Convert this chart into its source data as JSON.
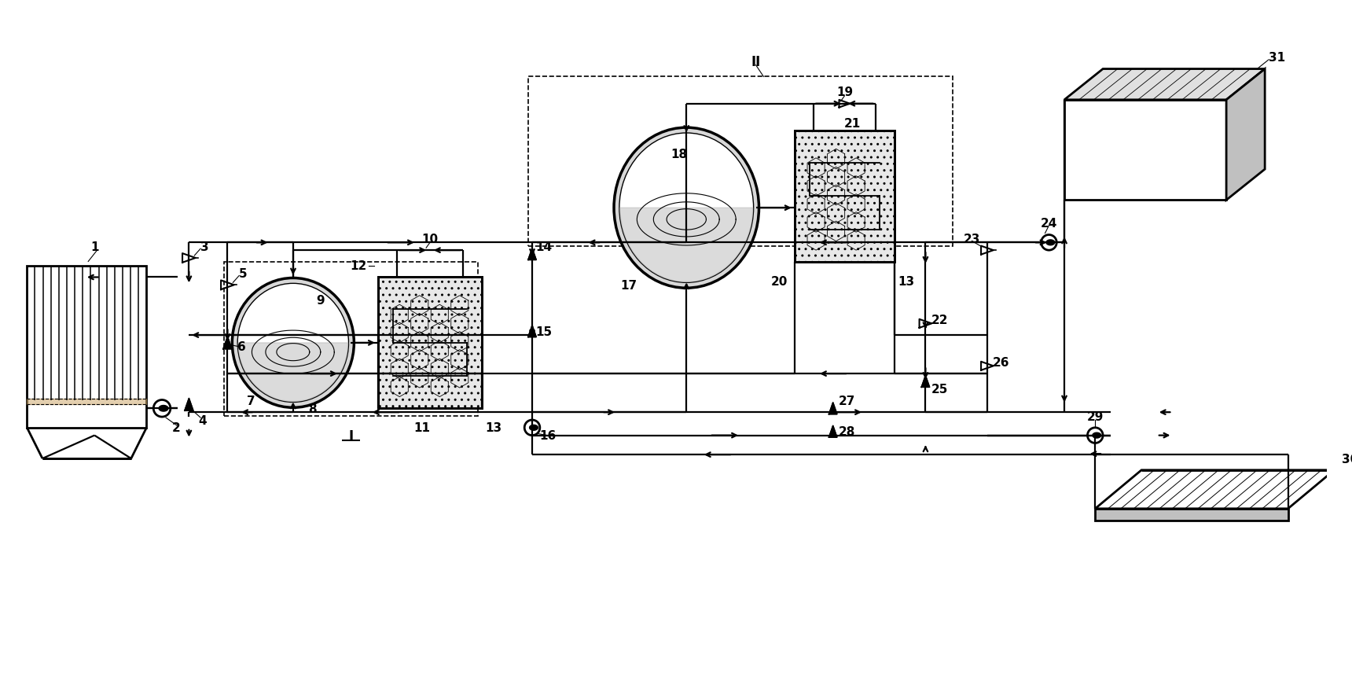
{
  "bg": "#ffffff",
  "lc": "#000000",
  "lw_pipe": 1.6,
  "lw_comp": 2.0,
  "lw_thin": 0.8,
  "label_fs": 11,
  "figw": 17.2,
  "figh": 8.62
}
